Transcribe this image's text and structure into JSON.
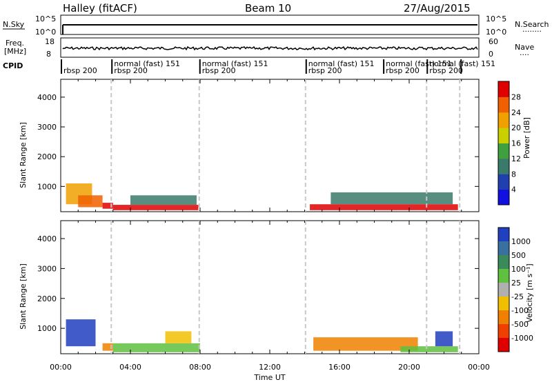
{
  "header": {
    "station": "Halley (fitACF)",
    "beam": "Beam 10",
    "date": "27/Aug/2015"
  },
  "nsky_panel": {
    "left_label": "N.Sky",
    "right_label": "N.Search",
    "right_dots": "........",
    "left_ticks": [
      "10^5",
      "10^0"
    ],
    "right_ticks": [
      "10^5",
      "10^0"
    ]
  },
  "freq_panel": {
    "left_label_line1": "Freq.",
    "left_label_line2": "[MHz]",
    "right_label": "Nave",
    "right_dots": "....",
    "left_ticks": [
      "18",
      "8"
    ],
    "right_ticks": [
      "60",
      "0"
    ]
  },
  "cpid": {
    "label": "CPID",
    "segments": [
      {
        "start": 0.0,
        "end": 2.9,
        "row1": "",
        "row2": "rbsp 200"
      },
      {
        "start": 2.9,
        "end": 7.95,
        "row1": "normal (fast) 151",
        "row2": "rbsp 200"
      },
      {
        "start": 7.95,
        "end": 14.05,
        "row1": "normal (fast) 151",
        "row2": "rbsp 200"
      },
      {
        "start": 14.05,
        "end": 18.5,
        "row1": "normal (fast) 151",
        "row2": "rbsp 200"
      },
      {
        "start": 18.5,
        "end": 21.0,
        "row1": "normal (fast) 151",
        "row2": "rbsp 200"
      },
      {
        "start": 21.0,
        "end": 22.9,
        "row1": "normal (fast) 151",
        "row2": "rbsp 200"
      }
    ],
    "overlap_text": "normal (fast) 151"
  },
  "chart_data": [
    {
      "type": "heatmap",
      "name": "power",
      "ylabel": "Slant Range [km]",
      "ylim": [
        150,
        4600
      ],
      "yticks": [
        1000,
        2000,
        3000,
        4000
      ],
      "colorbar_label": "Power [dB]",
      "colorbar_ticks": [
        "4",
        "8",
        "12",
        "16",
        "20",
        "24",
        "28"
      ],
      "colorbar_range": [
        0,
        32
      ],
      "colorbar_colors": [
        "#1010e0",
        "#2040b0",
        "#3a7a6a",
        "#40a040",
        "#c8d000",
        "#f0a000",
        "#f06000",
        "#e00000"
      ],
      "regions": [
        {
          "t0": 0.3,
          "t1": 1.8,
          "r0": 400,
          "r1": 1100,
          "level": 5
        },
        {
          "t0": 1.0,
          "t1": 2.4,
          "r0": 300,
          "r1": 700,
          "level": 6
        },
        {
          "t0": 2.4,
          "t1": 3.0,
          "r0": 250,
          "r1": 450,
          "level": 7
        },
        {
          "t0": 3.0,
          "t1": 7.9,
          "r0": 200,
          "r1": 380,
          "level": 7
        },
        {
          "t0": 4.0,
          "t1": 7.8,
          "r0": 380,
          "r1": 700,
          "level": 2
        },
        {
          "t0": 14.3,
          "t1": 22.8,
          "r0": 200,
          "r1": 400,
          "level": 7
        },
        {
          "t0": 15.5,
          "t1": 22.5,
          "r0": 400,
          "r1": 800,
          "level": 2
        }
      ]
    },
    {
      "type": "heatmap",
      "name": "velocity",
      "ylabel": "Slant Range [km]",
      "ylim": [
        150,
        4600
      ],
      "yticks": [
        1000,
        2000,
        3000,
        4000
      ],
      "colorbar_label": "Velocity [m s⁻¹]",
      "colorbar_ticks": [
        "1000",
        "500",
        "100",
        "25",
        "-25",
        "-100",
        "-500",
        "-1000"
      ],
      "colorbar_colors": [
        "#2040c0",
        "#3a70a0",
        "#3a8a5a",
        "#60c040",
        "#b0b0b0",
        "#f0c000",
        "#f08000",
        "#f04000",
        "#e00000"
      ],
      "regions": [
        {
          "t0": 0.3,
          "t1": 2.0,
          "r0": 400,
          "r1": 1300,
          "level": 0
        },
        {
          "t0": 2.4,
          "t1": 3.0,
          "r0": 250,
          "r1": 500,
          "level": 6
        },
        {
          "t0": 3.0,
          "t1": 8.0,
          "r0": 200,
          "r1": 500,
          "level": 3
        },
        {
          "t0": 6.0,
          "t1": 7.5,
          "r0": 500,
          "r1": 900,
          "level": 5
        },
        {
          "t0": 14.5,
          "t1": 20.5,
          "r0": 250,
          "r1": 700,
          "level": 6
        },
        {
          "t0": 19.5,
          "t1": 22.8,
          "r0": 200,
          "r1": 400,
          "level": 3
        },
        {
          "t0": 21.5,
          "t1": 22.5,
          "r0": 400,
          "r1": 900,
          "level": 0
        }
      ]
    }
  ],
  "x_axis": {
    "label": "Time UT",
    "ticks": [
      "00:00",
      "04:00",
      "08:00",
      "12:00",
      "16:00",
      "20:00",
      "00:00"
    ],
    "range_hours": [
      0,
      24
    ],
    "dashed_lines_hours": [
      2.9,
      7.95,
      14.05,
      21.0,
      22.9
    ]
  }
}
